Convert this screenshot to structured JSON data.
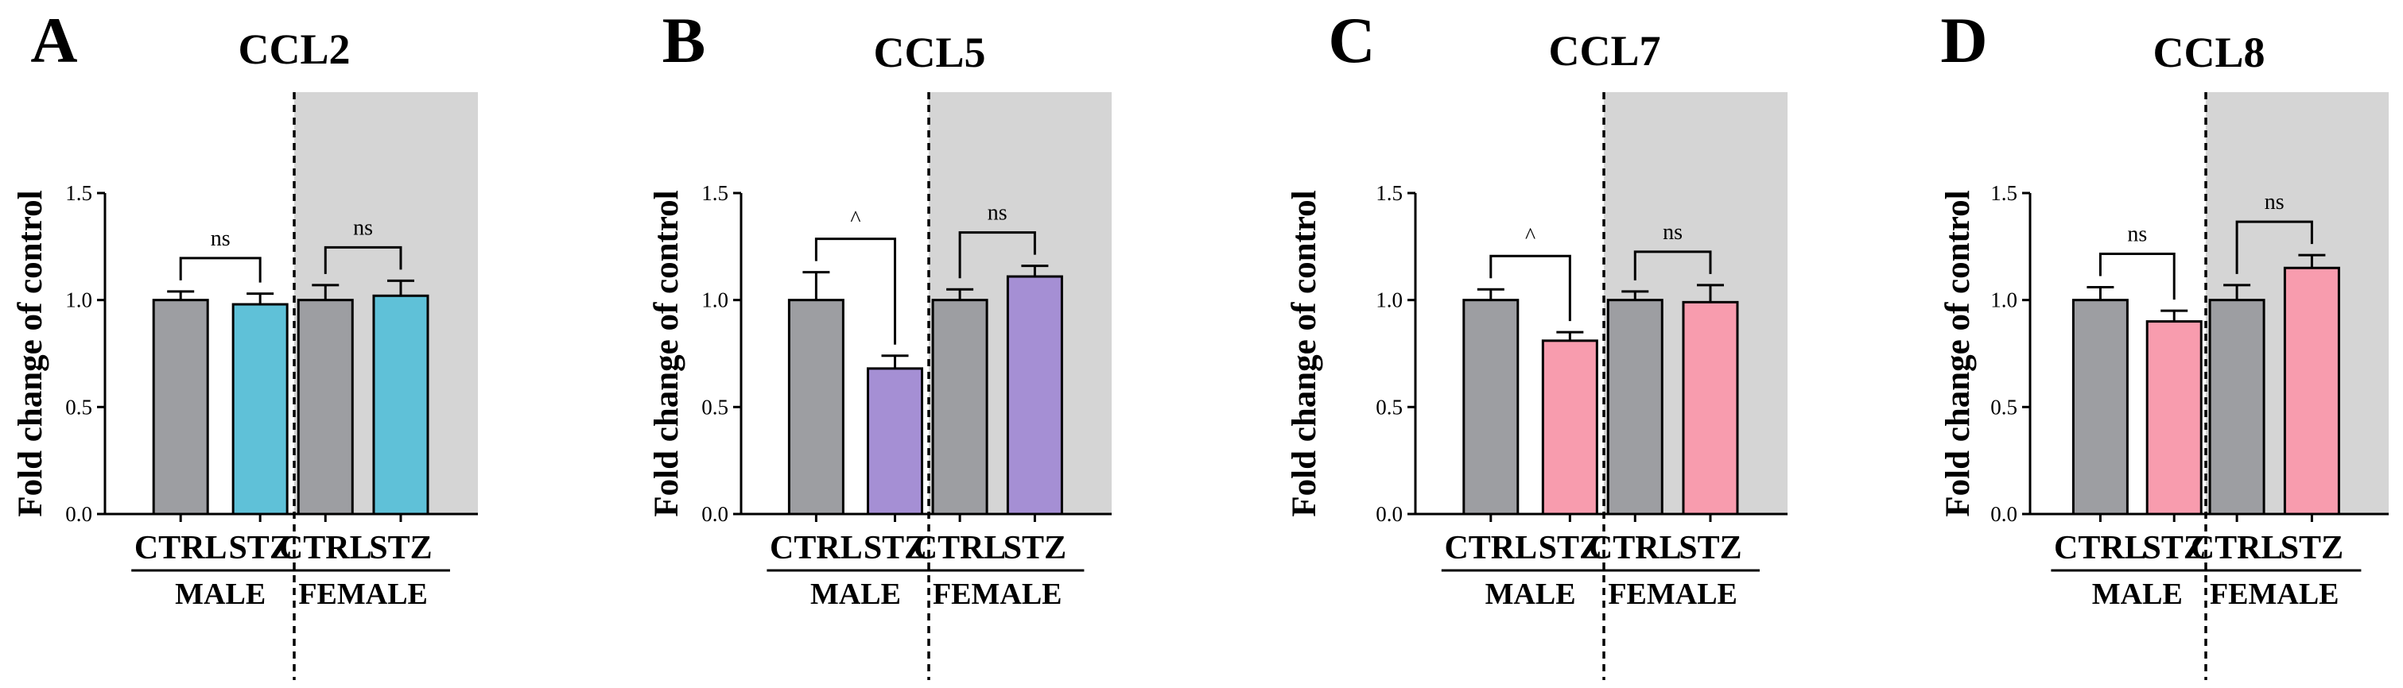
{
  "colors": {
    "ctrl": "#9d9ea2",
    "shade": "#d5d5d5",
    "ccl2_stz": "#5fc1d8",
    "ccl5_stz": "#a58fd4",
    "ccl7_stz": "#f89cae",
    "ccl8_stz": "#f89cae"
  },
  "chart_data": [
    {
      "type": "bar",
      "panel": "A",
      "title": "CCL2",
      "ylabel": "Fold change of control",
      "ylim": [
        0,
        1.5
      ],
      "yticks": [
        "0.0",
        "0.5",
        "1.0",
        "1.5"
      ],
      "categories": [
        "CTRL",
        "STZ",
        "CTRL",
        "STZ"
      ],
      "groups": [
        "MALE",
        "FEMALE"
      ],
      "values": [
        1.0,
        0.98,
        1.0,
        1.02
      ],
      "errors": [
        0.04,
        0.05,
        0.07,
        0.07
      ],
      "stz_color": "#5fc1d8",
      "significance": [
        "ns",
        "ns"
      ]
    },
    {
      "type": "bar",
      "panel": "B",
      "title": "CCL5",
      "ylabel": "Fold change of control",
      "ylim": [
        0,
        1.5
      ],
      "yticks": [
        "0.0",
        "0.5",
        "1.0",
        "1.5"
      ],
      "categories": [
        "CTRL",
        "STZ",
        "CTRL",
        "STZ"
      ],
      "groups": [
        "MALE",
        "FEMALE"
      ],
      "values": [
        1.0,
        0.68,
        1.0,
        1.11
      ],
      "errors": [
        0.13,
        0.06,
        0.05,
        0.05
      ],
      "stz_color": "#a58fd4",
      "significance": [
        "^",
        "ns"
      ]
    },
    {
      "type": "bar",
      "panel": "C",
      "title": "CCL7",
      "ylabel": "Fold change of control",
      "ylim": [
        0,
        1.5
      ],
      "yticks": [
        "0.0",
        "0.5",
        "1.0",
        "1.5"
      ],
      "categories": [
        "CTRL",
        "STZ",
        "CTRL",
        "STZ"
      ],
      "groups": [
        "MALE",
        "FEMALE"
      ],
      "values": [
        1.0,
        0.81,
        1.0,
        0.99
      ],
      "errors": [
        0.05,
        0.04,
        0.04,
        0.08
      ],
      "stz_color": "#f89cae",
      "significance": [
        "^",
        "ns"
      ]
    },
    {
      "type": "bar",
      "panel": "D",
      "title": "CCL8",
      "ylabel": "Fold change of control",
      "ylim": [
        0,
        1.5
      ],
      "yticks": [
        "0.0",
        "0.5",
        "1.0",
        "1.5"
      ],
      "categories": [
        "CTRL",
        "STZ",
        "CTRL",
        "STZ"
      ],
      "groups": [
        "MALE",
        "FEMALE"
      ],
      "values": [
        1.0,
        0.9,
        1.0,
        1.15
      ],
      "errors": [
        0.06,
        0.05,
        0.07,
        0.06
      ],
      "stz_color": "#f89cae",
      "significance": [
        "ns",
        "ns"
      ]
    }
  ]
}
